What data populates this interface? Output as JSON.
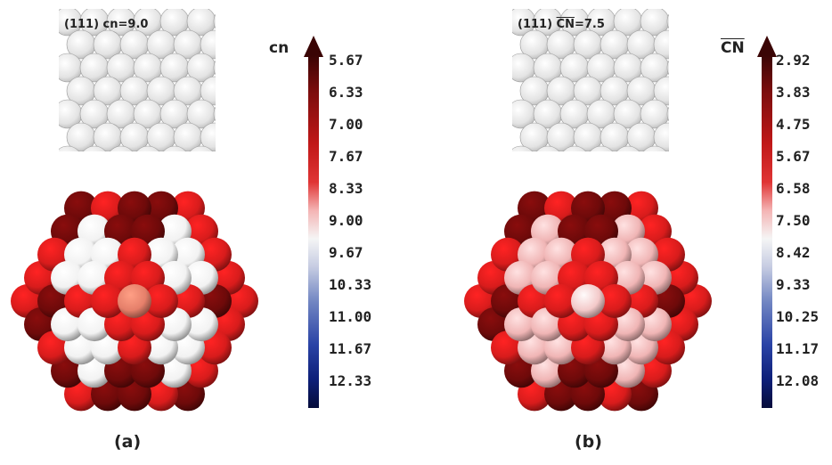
{
  "panel_a": {
    "surface_label_prefix": "(111) ",
    "surface_label_symbol": "cn",
    "surface_label_value": "=9.0",
    "colorbar_title": "cn",
    "ticks": [
      "5.67",
      "6.33",
      "7.00",
      "7.67",
      "8.33",
      "9.00",
      "9.67",
      "10.33",
      "11.00",
      "11.67",
      "12.33"
    ],
    "caption": "(a)"
  },
  "panel_b": {
    "surface_label_prefix": "(111) ",
    "surface_label_symbol": "CN",
    "surface_label_value": "=7.5",
    "colorbar_title": "CN",
    "ticks": [
      "2.92",
      "3.83",
      "4.75",
      "5.67",
      "6.58",
      "7.50",
      "8.42",
      "9.33",
      "10.25",
      "11.17",
      "12.08"
    ],
    "caption": "(b)"
  },
  "colors": {
    "dark_red": "#6e0a0a",
    "red": "#d81c1c",
    "pink": "#f0b5b5",
    "white": "#f2f2f2",
    "center_a": "#e57f6a",
    "center_b": "#f3c9c9",
    "blue": "#2a43a6",
    "navy": "#050c3a"
  }
}
